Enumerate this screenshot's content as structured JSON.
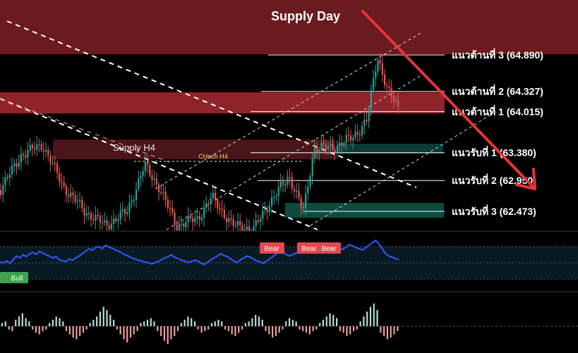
{
  "chart_data": {
    "type": "candlestick",
    "zones": {
      "supply_day": {
        "label": "Supply Day",
        "color": "#6b1a1f"
      },
      "supply_h4": {
        "label": "Supply H4",
        "color": "#4a1518"
      },
      "resistance_band": {
        "color": "#8f2329"
      },
      "support_band_1": {
        "color": "#0b3b35"
      },
      "support_band_3": {
        "color": "#0d4a40"
      }
    },
    "choch_label": "CHoch H4",
    "levels": [
      {
        "label": "แนวต้านที่ 3 (64.890)",
        "value": 64.89,
        "kind": "resistance"
      },
      {
        "label": "แนวต้านที่ 2 (64.327)",
        "value": 64.327,
        "kind": "resistance"
      },
      {
        "label": "แนวต้านที่ 1 (64.015)",
        "value": 64.015,
        "kind": "resistance"
      },
      {
        "label": "แนวรับที่ 1 (63.380)",
        "value": 63.38,
        "kind": "support"
      },
      {
        "label": "แนวรับที่ 2 (62.950)",
        "value": 62.95,
        "kind": "support"
      },
      {
        "label": "แนวรับที่ 3 (62.473)",
        "value": 62.473,
        "kind": "support"
      }
    ],
    "indicator_badges": [
      {
        "label": "Bear",
        "color": "#e5484d"
      },
      {
        "label": "Bear",
        "color": "#e5484d"
      },
      {
        "label": "Bear",
        "color": "#e5484d"
      },
      {
        "label": "Bull",
        "color": "#3fa34d"
      }
    ],
    "colors": {
      "up_candle": "#26a69a",
      "down_candle": "#ef5350",
      "oscillator_line": "#2f5bff",
      "arrow": "#e5333d",
      "level_line": "#ffffff",
      "hist_up": "#b8e0d8",
      "hist_down": "#f0a0a0"
    },
    "oscillator": {
      "values": [
        48,
        47,
        50,
        46,
        52,
        58,
        55,
        60,
        57,
        62,
        64,
        61,
        66,
        63,
        60,
        58,
        55,
        57,
        52,
        50,
        49,
        53,
        51,
        55,
        58,
        62,
        66,
        70,
        68,
        72,
        74,
        70,
        76,
        73,
        71,
        68,
        66,
        63,
        60,
        58,
        55,
        53,
        51,
        50,
        48,
        47,
        45,
        47,
        49,
        52,
        55,
        57,
        60,
        56,
        54,
        51,
        50,
        47,
        49,
        51,
        50,
        46,
        44,
        48,
        52,
        55,
        58,
        62,
        59,
        57,
        53,
        50,
        47,
        52,
        55,
        58,
        56,
        53,
        50,
        48,
        46,
        50,
        54,
        58,
        62,
        66,
        64,
        60,
        58,
        61,
        63,
        67,
        70,
        68,
        72,
        74,
        71,
        75,
        73,
        70,
        72,
        76,
        74,
        71,
        69,
        73,
        77,
        75,
        72,
        70,
        68,
        72,
        76,
        80,
        84,
        78,
        70,
        62,
        58,
        56,
        54,
        52
      ]
    },
    "histogram": {
      "values": [
        2,
        3,
        -2,
        -3,
        4,
        6,
        8,
        5,
        3,
        -2,
        -4,
        -5,
        -3,
        -2,
        2,
        4,
        6,
        5,
        3,
        -3,
        -5,
        -7,
        -8,
        -6,
        -4,
        -2,
        2,
        4,
        6,
        9,
        12,
        10,
        7,
        4,
        -2,
        -5,
        -8,
        -10,
        -7,
        -5,
        -3,
        2,
        3,
        4,
        5,
        3,
        -3,
        -6,
        -9,
        -11,
        -8,
        -6,
        -3,
        2,
        4,
        6,
        5,
        3,
        -2,
        -4,
        -3,
        -2,
        2,
        3,
        4,
        3,
        -2,
        -3,
        -5,
        -6,
        -4,
        -2,
        2,
        3,
        5,
        7,
        6,
        4,
        -3,
        -5,
        -7,
        -6,
        -4,
        -2,
        3,
        5,
        4,
        3,
        -2,
        -3,
        -4,
        -5,
        -3,
        -2,
        2,
        4,
        6,
        8,
        7,
        5,
        -3,
        -4,
        -6,
        -5,
        -3,
        -2,
        3,
        6,
        9,
        12,
        14,
        10,
        -4,
        -6,
        -8,
        -7,
        -5,
        -3
      ]
    }
  }
}
